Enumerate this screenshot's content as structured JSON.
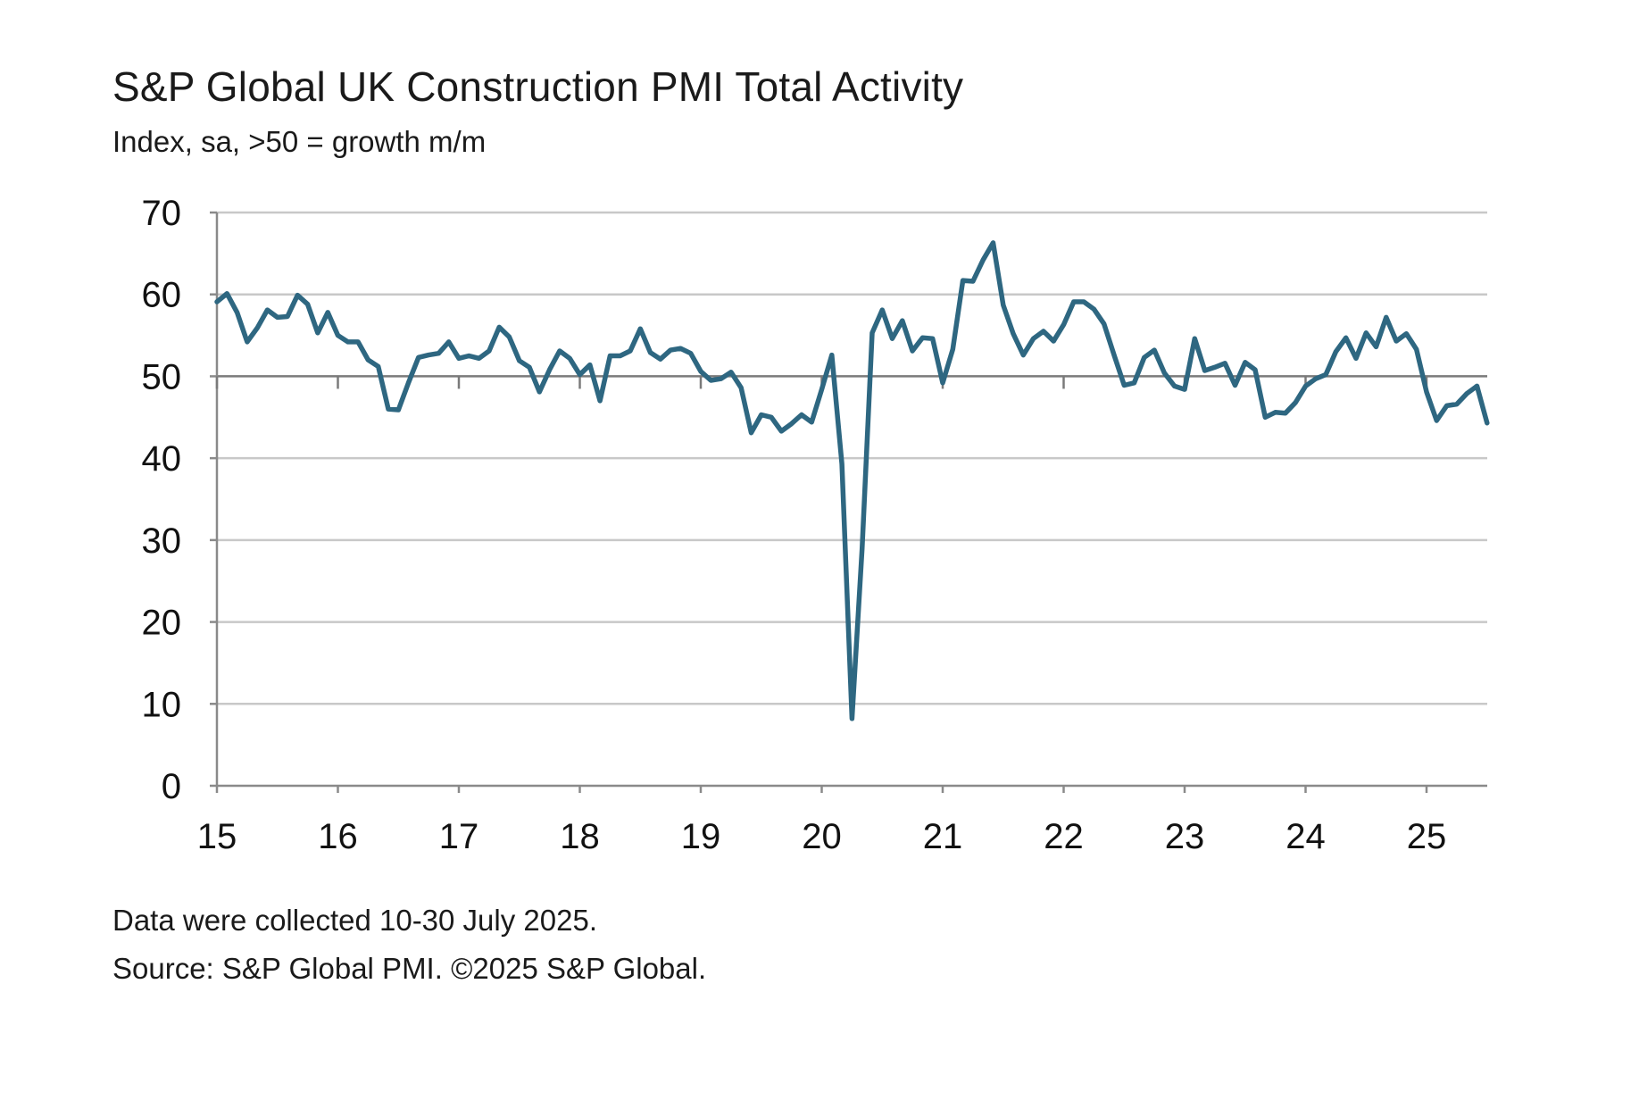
{
  "title": "S&P Global UK Construction PMI Total Activity",
  "subtitle": "Index, sa, >50 = growth m/m",
  "notes": {
    "collected": "Data were collected 10-30 July 2025.",
    "source": "Source: S&P Global PMI. ©2025 S&P Global."
  },
  "chart_data": {
    "type": "line",
    "title": "S&P Global UK Construction PMI Total Activity",
    "subtitle": "Index, sa, >50 = growth m/m",
    "xlabel": "",
    "ylabel": "",
    "ylim": [
      0,
      70
    ],
    "yticks": [
      "0",
      "10",
      "20",
      "30",
      "40",
      "50",
      "60",
      "70"
    ],
    "xticks": [
      "15",
      "16",
      "17",
      "18",
      "19",
      "20",
      "21",
      "22",
      "23",
      "24",
      "25"
    ],
    "grid": "horizontal",
    "reference_line": 50,
    "line_color": "#2e6781",
    "x_start": "2015-01",
    "x_end": "2025-07",
    "series": [
      {
        "values": [
          59.1,
          60.1,
          57.8,
          54.2,
          55.9,
          58.1,
          57.2,
          57.3,
          59.9,
          58.8,
          55.3,
          57.8,
          55.0,
          54.2,
          54.2,
          52.0,
          51.2,
          46.0,
          45.9,
          49.2,
          52.3,
          52.6,
          52.8,
          54.2,
          52.2,
          52.5,
          52.2,
          53.1,
          56.0,
          54.8,
          51.9,
          51.1,
          48.1,
          50.8,
          53.1,
          52.2,
          50.2,
          51.4,
          47.0,
          52.5,
          52.5,
          53.1,
          55.8,
          52.9,
          52.1,
          53.2,
          53.4,
          52.8,
          50.6,
          49.5,
          49.7,
          50.5,
          48.6,
          43.1,
          45.3,
          45.0,
          43.3,
          44.2,
          45.3,
          44.4,
          48.4,
          52.6,
          39.3,
          8.2,
          28.9,
          55.3,
          58.1,
          54.6,
          56.8,
          53.1,
          54.7,
          54.6,
          49.2,
          53.3,
          61.7,
          61.6,
          64.2,
          66.3,
          58.7,
          55.2,
          52.6,
          54.6,
          55.5,
          54.3,
          56.3,
          59.1,
          59.1,
          58.2,
          56.4,
          52.6,
          48.9,
          49.2,
          52.3,
          53.2,
          50.4,
          48.8,
          48.4,
          54.6,
          50.7,
          51.1,
          51.6,
          48.9,
          51.7,
          50.8,
          45.0,
          45.6,
          45.5,
          46.8,
          48.8,
          49.7,
          50.2,
          53.0,
          54.7,
          52.2,
          55.3,
          53.6,
          57.2,
          54.3,
          55.2,
          53.3,
          48.1,
          44.6,
          46.4,
          46.6,
          47.9,
          48.8,
          44.3
        ]
      }
    ]
  }
}
